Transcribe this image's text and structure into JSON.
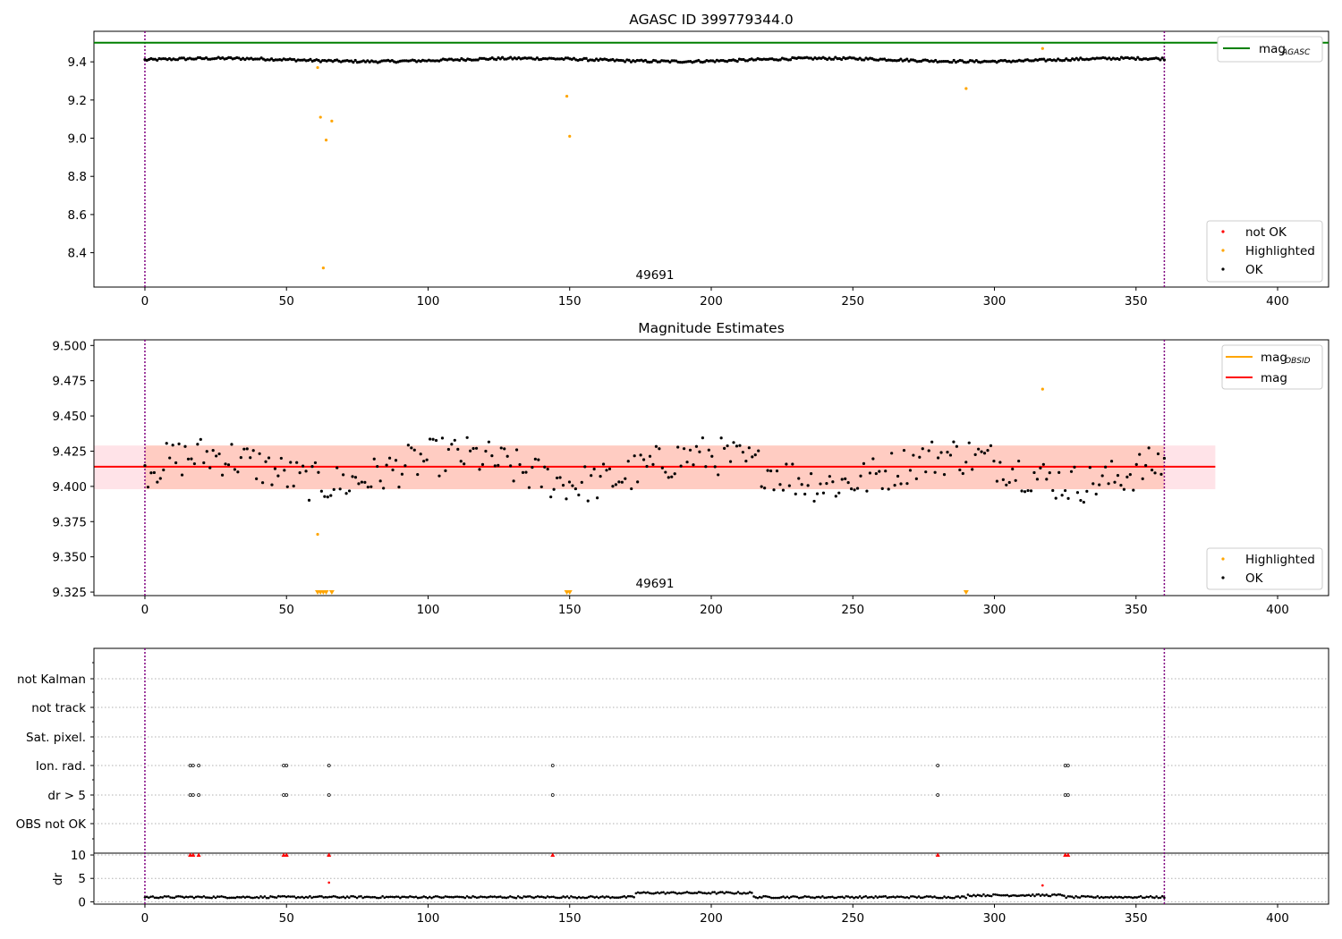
{
  "colors": {
    "ok": "#000000",
    "highlighted": "#ffa500",
    "not_ok": "#ff0000",
    "mag_agasc": "#008000",
    "mag_obsid": "#ffa500",
    "mag": "#ff0000",
    "band_outer": "#ffc0cb",
    "band_inner": "#ffa07a",
    "vline": "#800080",
    "grid": "#b0b0b0"
  },
  "chart_data": [
    {
      "type": "scatter",
      "title": "AGASC ID 399779344.0",
      "annotation": "49691",
      "xlim": [
        -18,
        418
      ],
      "ylim": [
        8.22,
        9.56
      ],
      "x_ticks": [
        "0",
        "50",
        "100",
        "150",
        "200",
        "250",
        "300",
        "350",
        "400"
      ],
      "y_ticks": [
        "8.4",
        "8.6",
        "8.8",
        "9.0",
        "9.2",
        "9.4"
      ],
      "vlines": [
        0,
        360
      ],
      "hline": {
        "name": "mag_AGASC",
        "y": 9.5
      },
      "legend_lines": [
        {
          "label": "mag",
          "sub": "AGASC"
        }
      ],
      "legend_points": [
        "not OK",
        "Highlighted",
        "OK"
      ],
      "ok_base": 9.41,
      "ok_amplitude": 0.012,
      "ok_x_range": [
        0,
        360
      ],
      "ok_points": 500,
      "highlighted": [
        [
          61,
          9.37
        ],
        [
          62,
          9.11
        ],
        [
          63,
          8.32
        ],
        [
          64,
          8.99
        ],
        [
          66,
          9.09
        ],
        [
          149,
          9.22
        ],
        [
          150,
          9.01
        ],
        [
          290,
          9.26
        ],
        [
          317,
          9.47
        ]
      ]
    },
    {
      "type": "scatter",
      "title": "Magnitude Estimates",
      "annotation": "49691",
      "xlim": [
        -18,
        418
      ],
      "ylim": [
        9.3225,
        9.504
      ],
      "x_ticks": [
        "0",
        "50",
        "100",
        "150",
        "200",
        "250",
        "300",
        "350",
        "400"
      ],
      "y_ticks": [
        "9.325",
        "9.350",
        "9.375",
        "9.400",
        "9.425",
        "9.450",
        "9.475",
        "9.500"
      ],
      "vlines": [
        0,
        360
      ],
      "mag": 9.414,
      "mag_band": [
        9.398,
        9.429
      ],
      "band_x": [
        -18,
        378
      ],
      "legend_lines": [
        {
          "label": "mag",
          "sub": "OBSID"
        },
        {
          "label": "mag",
          "sub": ""
        }
      ],
      "legend_points": [
        "Highlighted",
        "OK"
      ],
      "ok_base": 9.412,
      "ok_amplitude": 0.014,
      "ok_x_range": [
        0,
        360
      ],
      "ok_points": 330,
      "highlighted": [
        [
          61,
          9.366
        ],
        [
          317,
          9.469
        ]
      ],
      "below_range_markers": [
        61,
        62,
        63,
        64,
        66,
        149,
        150,
        290
      ]
    },
    {
      "type": "scatter",
      "title": "",
      "xlim": [
        -18,
        418
      ],
      "flag_labels": [
        "not Kalman",
        "not track",
        "Sat. pixel.",
        "Ion. rad.",
        "dr > 5",
        "OBS not OK"
      ],
      "flags": {
        "Ion. rad.": [
          16,
          17,
          19,
          49,
          50,
          65,
          144,
          280,
          325,
          326
        ],
        "dr > 5": [
          16,
          17,
          19,
          49,
          50,
          65,
          144,
          280,
          325,
          326
        ]
      },
      "dr_ylabel": "dr",
      "dr_ticks": [
        "0",
        "5",
        "10"
      ],
      "dr_ylim": [
        -0.5,
        10.2
      ],
      "dr_clipped": [
        16,
        17,
        19,
        49,
        50,
        65,
        144,
        280,
        325,
        326
      ],
      "dr_outliers": [
        [
          65,
          4.1
        ],
        [
          317,
          3.5
        ]
      ],
      "dr_base": 1.0,
      "dr_points": 520,
      "x_ticks": [
        "0",
        "50",
        "100",
        "150",
        "200",
        "250",
        "300",
        "350",
        "400"
      ]
    }
  ]
}
